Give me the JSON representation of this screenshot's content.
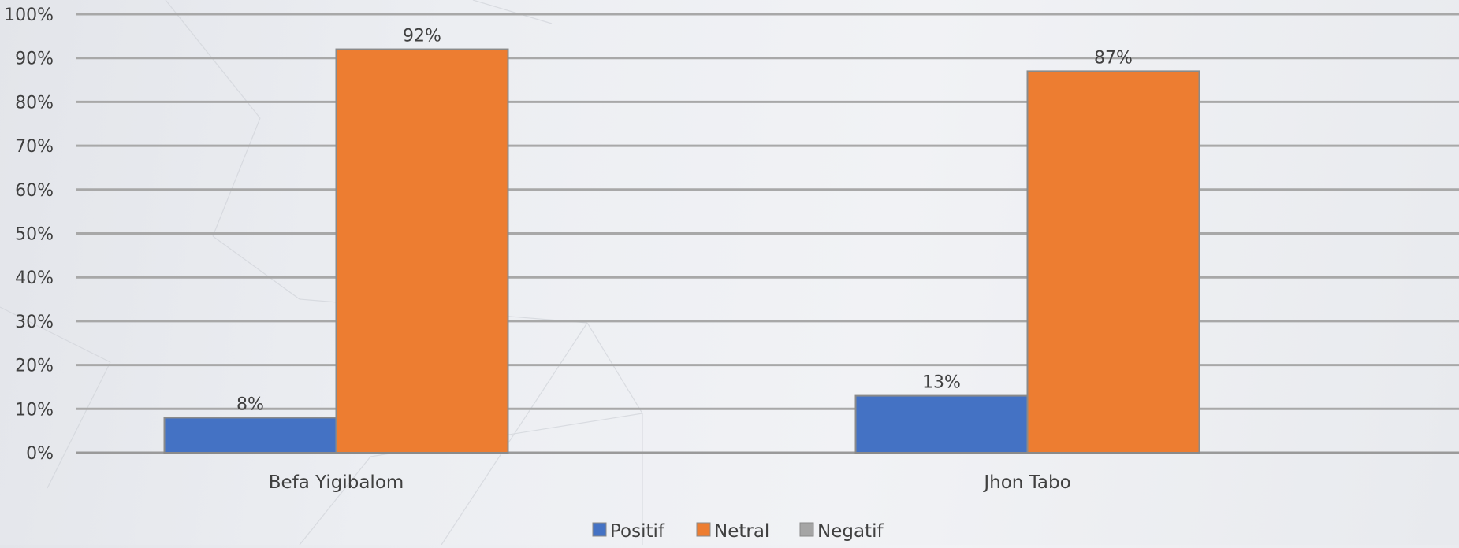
{
  "chart_data": {
    "type": "bar",
    "categories": [
      "Befa Yigibalom",
      "Jhon Tabo"
    ],
    "series": [
      {
        "name": "Positif",
        "values": [
          8,
          13
        ],
        "color": "#4472c4"
      },
      {
        "name": "Netral",
        "values": [
          92,
          87
        ],
        "color": "#ed7d31"
      },
      {
        "name": "Negatif",
        "values": [
          0,
          0
        ],
        "color": "#a5a5a5"
      }
    ],
    "data_labels": [
      [
        "8%",
        "13%"
      ],
      [
        "92%",
        "87%"
      ],
      [
        null,
        null
      ]
    ],
    "yticks": [
      "0%",
      "10%",
      "20%",
      "30%",
      "40%",
      "50%",
      "60%",
      "70%",
      "80%",
      "90%",
      "100%"
    ],
    "ylim": [
      0,
      100
    ],
    "grid": true,
    "legend": "bottom"
  }
}
